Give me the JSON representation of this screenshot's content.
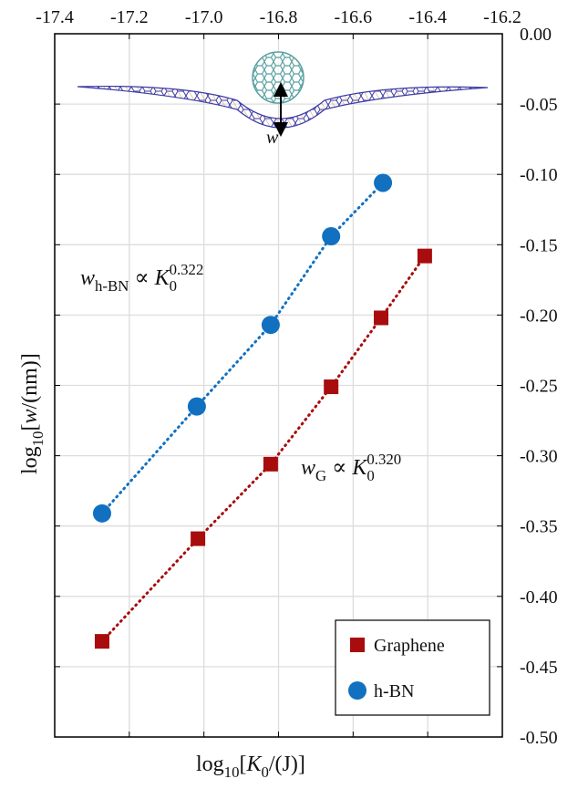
{
  "chart_data": {
    "type": "scatter",
    "xlabel": [
      {
        "text": "log"
      },
      {
        "text": "10",
        "style": "sub"
      },
      {
        "text": "["
      },
      {
        "text": "K",
        "style": "italic"
      },
      {
        "text": "0",
        "style": "sub"
      },
      {
        "text": "/(J)]"
      }
    ],
    "ylabel": [
      {
        "text": "log"
      },
      {
        "text": "10",
        "style": "sub"
      },
      {
        "text": "["
      },
      {
        "text": "w",
        "style": "italic"
      },
      {
        "text": "/(nm)]"
      }
    ],
    "xlim": [
      -17.4,
      -16.2
    ],
    "xticks": [
      -17.4,
      -17.2,
      {
        "value": -17.0,
        "label": "-17.0"
      },
      -16.8,
      -16.6,
      -16.4,
      -16.2
    ],
    "ylim": [
      -0.5,
      0.0
    ],
    "yticks": [
      {
        "value": 0,
        "label": "0.00"
      },
      {
        "value": -0.05,
        "label": "-0.05"
      },
      {
        "value": -0.1,
        "label": "-0.10"
      },
      {
        "value": -0.15,
        "label": "-0.15"
      },
      {
        "value": -0.2,
        "label": "-0.20"
      },
      {
        "value": -0.25,
        "label": "-0.25"
      },
      {
        "value": -0.3,
        "label": "-0.30"
      },
      {
        "value": -0.35,
        "label": "-0.35"
      },
      {
        "value": -0.4,
        "label": "-0.40"
      },
      {
        "value": -0.45,
        "label": "-0.45"
      },
      {
        "value": -0.5,
        "label": "-0.50"
      }
    ],
    "grid": true,
    "legend": "lower right",
    "series": [
      {
        "name": "Graphene",
        "color": "#a80c0c",
        "marker": "square",
        "x": [
          -17.273,
          -17.016,
          -16.821,
          -16.659,
          -16.525,
          -16.408
        ],
        "values": [
          -0.432,
          -0.359,
          -0.306,
          -0.251,
          -0.202,
          -0.158
        ]
      },
      {
        "name": "h-BN",
        "color": "#1170c0",
        "marker": "circle",
        "x": [
          -17.273,
          -17.019,
          -16.821,
          -16.659,
          -16.52
        ],
        "values": [
          -0.341,
          -0.265,
          -0.207,
          -0.144,
          -0.106
        ]
      }
    ],
    "annotations": [
      [
        {
          "text": "w",
          "style": "italic"
        },
        {
          "text": "h-BN",
          "style": "sub"
        },
        {
          "text": " ∝ "
        },
        {
          "text": "K",
          "style": "italic"
        },
        {
          "text": "0",
          "style": "sub"
        },
        {
          "text": "0.322",
          "style": "sup-over"
        }
      ],
      [
        {
          "text": "w",
          "style": "italic"
        },
        {
          "text": "G",
          "style": "sub"
        },
        {
          "text": " ∝ "
        },
        {
          "text": "K",
          "style": "italic"
        },
        {
          "text": "0",
          "style": "sub"
        },
        {
          "text": "0.320",
          "style": "sup-over"
        }
      ]
    ],
    "inset_label": "w"
  }
}
